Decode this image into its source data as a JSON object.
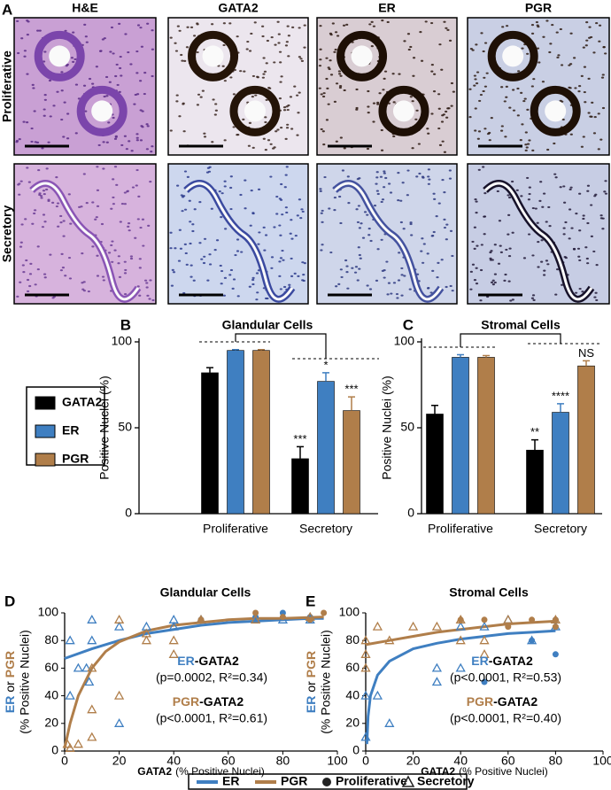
{
  "panel_a": {
    "label": "A",
    "columns": [
      "H&E",
      "GATA2",
      "ER",
      "PGR"
    ],
    "rows": [
      "Proliferative",
      "Secretory"
    ]
  },
  "bar_legend": {
    "source": "chart_data.0.series"
  },
  "legend": {
    "items": [
      {
        "label": "ER",
        "color": "#3f7fc1",
        "symbol": "line"
      },
      {
        "label": "PGR",
        "color": "#b07e4a",
        "symbol": "line"
      },
      {
        "label": "Proliferative",
        "color": "#222222",
        "symbol": "circle"
      },
      {
        "label": "Secretory",
        "color": "#222222",
        "symbol": "triangle"
      }
    ]
  },
  "chart_data": [
    {
      "type": "bar",
      "panel": "B",
      "title": "Glandular Cells",
      "ylabel": "Positive Nuclei (%)",
      "categories": [
        "Proliferative",
        "Secretory"
      ],
      "ylim": [
        0,
        100
      ],
      "yticks": [
        0,
        50,
        100
      ],
      "series": [
        {
          "name": "GATA2",
          "color": "#000000",
          "values": [
            82,
            32
          ],
          "errors": [
            3,
            7
          ],
          "labels": [
            null,
            "***"
          ]
        },
        {
          "name": "ER",
          "color": "#3f7fc1",
          "values": [
            95,
            77
          ],
          "errors": [
            0.5,
            5
          ],
          "labels": [
            null,
            "*"
          ]
        },
        {
          "name": "PGR",
          "color": "#b07e4a",
          "values": [
            95,
            60
          ],
          "errors": [
            0.5,
            8
          ],
          "labels": [
            null,
            "***"
          ]
        }
      ]
    },
    {
      "type": "bar",
      "panel": "C",
      "title": "Stromal Cells",
      "ylabel": "Positive Nuclei (%)",
      "categories": [
        "Proliferative",
        "Secretory"
      ],
      "ylim": [
        0,
        100
      ],
      "yticks": [
        0,
        50,
        100
      ],
      "series": [
        {
          "name": "GATA2",
          "color": "#000000",
          "values": [
            58,
            37
          ],
          "errors": [
            5,
            6
          ],
          "labels": [
            null,
            "**"
          ]
        },
        {
          "name": "ER",
          "color": "#3f7fc1",
          "values": [
            91,
            59
          ],
          "errors": [
            1.5,
            5
          ],
          "labels": [
            null,
            "****"
          ]
        },
        {
          "name": "PGR",
          "color": "#b07e4a",
          "values": [
            91,
            86
          ],
          "errors": [
            1,
            3
          ],
          "labels": [
            null,
            "NS"
          ]
        }
      ]
    },
    {
      "type": "scatter",
      "panel": "D",
      "title": "Glandular Cells",
      "xlabel": [
        {
          "text": "GATA2",
          "bold": true
        },
        {
          "text": "(% Positive Nuclei)"
        }
      ],
      "ylabel": [
        {
          "text": "ER",
          "color": "#3f7fc1"
        },
        {
          "text": "or"
        },
        {
          "text": "PGR",
          "color": "#b07e4a"
        }
      ],
      "ylabel_sub": "(% Positive Nuclei)",
      "xlim": [
        0,
        100
      ],
      "ylim": [
        0,
        100
      ],
      "xticks": [
        0,
        20,
        40,
        60,
        80,
        100
      ],
      "yticks": [
        0,
        20,
        40,
        60,
        80,
        100
      ],
      "annotations": [
        {
          "parts": [
            {
              "text": "ER",
              "color": "#3f7fc1"
            },
            {
              "text": "-GATA2"
            }
          ],
          "stats": "(p=0.0002, R²=0.34)"
        },
        {
          "parts": [
            {
              "text": "PGR",
              "color": "#b07e4a"
            },
            {
              "text": "-GATA2"
            }
          ],
          "stats": "(p<0.0001, R²=0.61)"
        }
      ],
      "series": [
        {
          "color": "#3f7fc1",
          "marker": "line",
          "x": [
            0,
            10,
            20,
            30,
            40,
            50,
            60,
            70,
            80,
            90,
            95
          ],
          "values": [
            67,
            74,
            80,
            85,
            88,
            91,
            93,
            94,
            95,
            96,
            96
          ]
        },
        {
          "color": "#b07e4a",
          "marker": "line",
          "x": [
            0,
            2,
            5,
            8,
            10,
            15,
            20,
            30,
            40,
            50,
            60,
            70,
            80,
            95
          ],
          "values": [
            2,
            20,
            40,
            52,
            60,
            72,
            79,
            87,
            91,
            93,
            95,
            96,
            96,
            97
          ]
        },
        {
          "color": "#3f7fc1",
          "marker": "triangle",
          "x": [
            2,
            2,
            5,
            8,
            10,
            10,
            9,
            20,
            20,
            30,
            40,
            40,
            50,
            70,
            90,
            80
          ],
          "values": [
            80,
            40,
            60,
            60,
            80,
            95,
            50,
            20,
            90,
            90,
            95,
            90,
            95,
            95,
            95,
            95
          ]
        },
        {
          "color": "#3f7fc1",
          "marker": "circle",
          "x": [
            80,
            90,
            70,
            50
          ],
          "values": [
            100,
            97,
            97,
            95
          ]
        },
        {
          "color": "#b07e4a",
          "marker": "triangle",
          "x": [
            1,
            2,
            5,
            10,
            10,
            10,
            20,
            20,
            30,
            30,
            40,
            40,
            50,
            70,
            90
          ],
          "values": [
            5,
            2,
            5,
            10,
            30,
            60,
            95,
            40,
            80,
            85,
            70,
            80,
            95,
            95,
            97
          ]
        },
        {
          "color": "#b07e4a",
          "marker": "circle",
          "x": [
            70,
            95,
            80,
            90,
            50
          ],
          "values": [
            100,
            100,
            97,
            95,
            95
          ]
        }
      ]
    },
    {
      "type": "scatter",
      "panel": "E",
      "title": "Stromal Cells",
      "xlabel": [
        {
          "text": "GATA2",
          "bold": true
        },
        {
          "text": "(% Positive Nuclei)"
        }
      ],
      "ylabel": [
        {
          "text": "ER",
          "color": "#3f7fc1"
        },
        {
          "text": "or"
        },
        {
          "text": "PGR",
          "color": "#b07e4a"
        }
      ],
      "ylabel_sub": "(% Positive Nuclei)",
      "xlim": [
        0,
        100
      ],
      "ylim": [
        0,
        100
      ],
      "xticks": [
        0,
        20,
        40,
        60,
        80,
        100
      ],
      "yticks": [
        0,
        20,
        40,
        60,
        80,
        100
      ],
      "annotations": [
        {
          "parts": [
            {
              "text": "ER",
              "color": "#3f7fc1"
            },
            {
              "text": "-GATA2"
            }
          ],
          "stats": "(p<0.0001, R²=0.53)"
        },
        {
          "parts": [
            {
              "text": "PGR",
              "color": "#b07e4a"
            },
            {
              "text": "-GATA2"
            }
          ],
          "stats": "(p<0.0001, R²=0.40)"
        }
      ],
      "series": [
        {
          "color": "#3f7fc1",
          "marker": "line",
          "x": [
            0.5,
            1,
            2,
            5,
            10,
            20,
            30,
            40,
            50,
            60,
            70,
            80
          ],
          "values": [
            5,
            25,
            40,
            55,
            65,
            74,
            78,
            81,
            83,
            85,
            86,
            87
          ]
        },
        {
          "color": "#b07e4a",
          "marker": "line",
          "x": [
            0,
            10,
            20,
            30,
            40,
            50,
            60,
            70,
            80
          ],
          "values": [
            77,
            80,
            83,
            86,
            88,
            90,
            92,
            93,
            94
          ]
        },
        {
          "color": "#3f7fc1",
          "marker": "triangle",
          "x": [
            0,
            0,
            5,
            10,
            30,
            30,
            40,
            40,
            50,
            60,
            70,
            80
          ],
          "values": [
            40,
            10,
            40,
            20,
            60,
            50,
            60,
            90,
            90,
            95,
            80,
            90
          ]
        },
        {
          "color": "#3f7fc1",
          "marker": "circle",
          "x": [
            50,
            80,
            80,
            70
          ],
          "values": [
            50,
            70,
            95,
            80
          ]
        },
        {
          "color": "#b07e4a",
          "marker": "triangle",
          "x": [
            0,
            0,
            0,
            5,
            10,
            20,
            30,
            40,
            40,
            50,
            50,
            60,
            80
          ],
          "values": [
            60,
            80,
            70,
            90,
            80,
            90,
            90,
            80,
            95,
            70,
            80,
            95,
            95
          ]
        },
        {
          "color": "#b07e4a",
          "marker": "circle",
          "x": [
            40,
            50,
            70,
            80,
            80,
            60
          ],
          "values": [
            95,
            95,
            95,
            90,
            95,
            90
          ]
        }
      ]
    }
  ]
}
